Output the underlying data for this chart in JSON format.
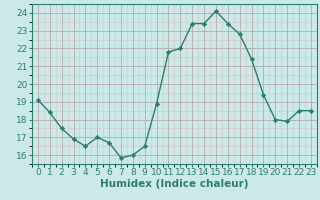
{
  "x": [
    0,
    1,
    2,
    3,
    4,
    5,
    6,
    7,
    8,
    9,
    10,
    11,
    12,
    13,
    14,
    15,
    16,
    17,
    18,
    19,
    20,
    21,
    22,
    23
  ],
  "y": [
    19.1,
    18.4,
    17.5,
    16.9,
    16.5,
    17.0,
    16.7,
    15.85,
    16.0,
    16.5,
    18.9,
    21.8,
    22.0,
    23.4,
    23.4,
    24.1,
    23.4,
    22.8,
    21.4,
    19.4,
    18.0,
    17.9,
    18.5,
    18.5
  ],
  "line_color": "#2d7d6e",
  "marker": "D",
  "marker_size": 2.2,
  "bg_color": "#cce9e9",
  "grid_color_major": "#b8a8a8",
  "grid_color_minor": "#d4c4c4",
  "xlabel": "Humidex (Indice chaleur)",
  "xlabel_fontsize": 7.5,
  "tick_fontsize": 6.5,
  "xlim": [
    -0.5,
    23.5
  ],
  "ylim": [
    15.5,
    24.5
  ],
  "yticks": [
    16,
    17,
    18,
    19,
    20,
    21,
    22,
    23,
    24
  ],
  "xticks": [
    0,
    1,
    2,
    3,
    4,
    5,
    6,
    7,
    8,
    9,
    10,
    11,
    12,
    13,
    14,
    15,
    16,
    17,
    18,
    19,
    20,
    21,
    22,
    23
  ],
  "spine_color": "#2d7d6e",
  "linewidth": 1.0
}
